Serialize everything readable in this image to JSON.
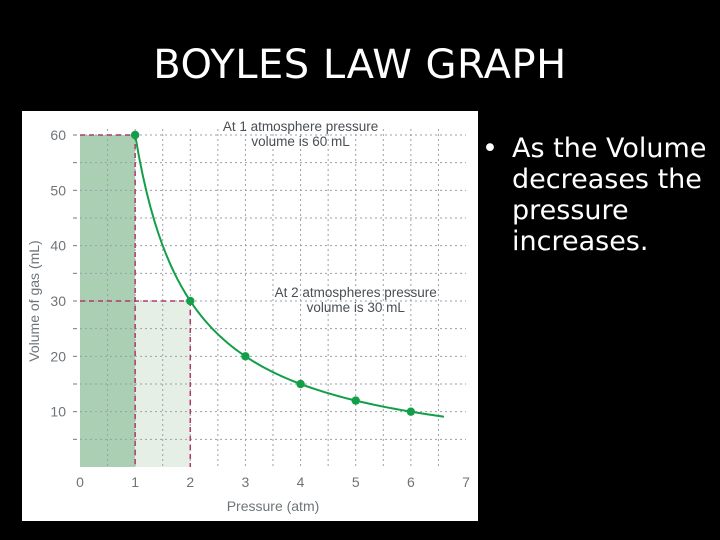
{
  "slide": {
    "title": "BOYLES LAW GRAPH",
    "bullet_symbol": "•",
    "bullet_text": "As the Volume decreases the pressure increases."
  },
  "colors": {
    "curve": "#139e48",
    "dark_fill": "#aacfb2",
    "light_fill": "#e5efe6",
    "dash_line": "#b03a6a",
    "grid": "#9aa0a8"
  },
  "chart_data": {
    "type": "line",
    "title": "",
    "xlabel": "Pressure (atm)",
    "ylabel": "Volume of gas (mL)",
    "xlim": [
      0,
      7
    ],
    "ylim": [
      0,
      60
    ],
    "x_ticks": [
      "0",
      "1",
      "2",
      "3",
      "4",
      "5",
      "6",
      "7"
    ],
    "y_ticks": [
      "10",
      "20",
      "30",
      "40",
      "50",
      "60"
    ],
    "grid": true,
    "series": [
      {
        "points": [
          {
            "x": 1,
            "y": 60
          },
          {
            "x": 2,
            "y": 30
          },
          {
            "x": 3,
            "y": 20
          },
          {
            "x": 4,
            "y": 15
          },
          {
            "x": 5,
            "y": 12
          },
          {
            "x": 6,
            "y": 10
          }
        ],
        "curve_x_range": [
          1,
          6.6
        ],
        "curve_constant": 60
      }
    ],
    "highlights": [
      {
        "x": 1,
        "y": 60,
        "shade": "dark"
      },
      {
        "x": 2,
        "y": 30,
        "shade": "light"
      }
    ],
    "annotations": [
      {
        "lines": [
          "At 1 atmosphere pressure",
          "volume is 60 mL"
        ],
        "x": 4,
        "y": 60
      },
      {
        "lines": [
          "At 2 atmospheres pressure",
          "volume is 30 mL"
        ],
        "x": 5,
        "y": 30
      }
    ]
  }
}
